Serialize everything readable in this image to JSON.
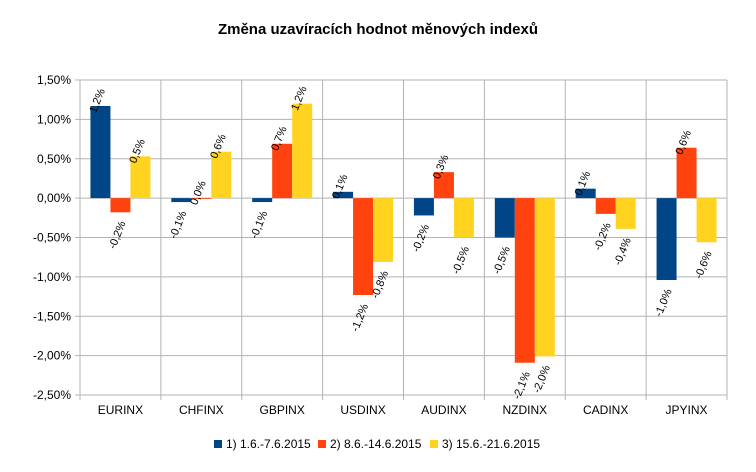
{
  "chart_data": {
    "type": "bar",
    "title": "Změna uzavíracích hodnot měnových indexů",
    "categories": [
      "EURINX",
      "CHFINX",
      "GBPINX",
      "USDINX",
      "AUDINX",
      "NZDINX",
      "CADINX",
      "JPYINX"
    ],
    "series": [
      {
        "name": "1) 1.6.-7.6.2015",
        "color": "#004586",
        "values": [
          1.17,
          -0.05,
          -0.05,
          0.08,
          -0.22,
          -0.5,
          0.12,
          -1.04
        ],
        "labels": [
          "1,2%",
          "-0,1%",
          "-0,1%",
          "0,1%",
          "-0,2%",
          "-0,5%",
          "0,1%",
          "-1,0%"
        ]
      },
      {
        "name": "2) 8.6.-14.6.2015",
        "color": "#ff420e",
        "values": [
          -0.18,
          0.0,
          0.69,
          -1.23,
          0.33,
          -2.09,
          -0.2,
          0.64
        ],
        "labels": [
          "-0,2%",
          "0,0%",
          "0,7%",
          "-1,2%",
          "0,3%",
          "-2,1%",
          "-0,2%",
          "0,6%"
        ]
      },
      {
        "name": "3) 15.6.-21.6.2015",
        "color": "#ffd320",
        "values": [
          0.53,
          0.59,
          1.2,
          -0.81,
          -0.5,
          -2.01,
          -0.39,
          -0.56
        ],
        "labels": [
          "0,5%",
          "0,6%",
          "1,2%",
          "-0,8%",
          "-0,5%",
          "-2,0%",
          "-0,4%",
          "-0,6%"
        ]
      }
    ],
    "yticks": [
      "1,50%",
      "1,00%",
      "0,50%",
      "0,00%",
      "-0,50%",
      "-1,00%",
      "-1,50%",
      "-2,00%",
      "-2,50%"
    ],
    "ylim": [
      -2.5,
      1.5
    ],
    "grid": true,
    "legend": "bottom"
  }
}
